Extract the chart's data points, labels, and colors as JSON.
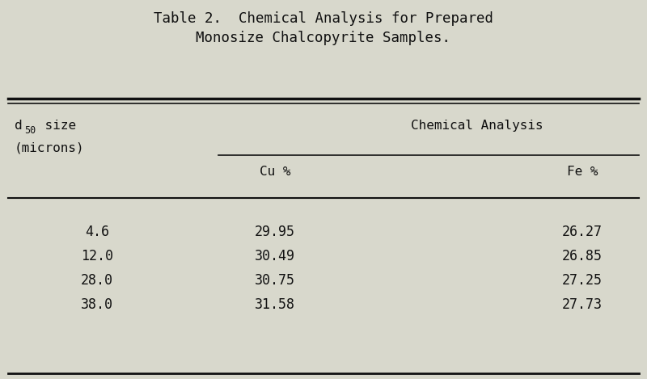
{
  "title_line1": "Table 2.  Chemical Analysis for Prepared",
  "title_line2": "Monosize Chalcopyrite Samples.",
  "col_header_group": "Chemical Analysis",
  "col_header_cu": "Cu %",
  "col_header_fe": "Fe %",
  "rows": [
    {
      "size": "4.6",
      "cu": "29.95",
      "fe": "26.27"
    },
    {
      "size": "12.0",
      "cu": "30.49",
      "fe": "26.85"
    },
    {
      "size": "28.0",
      "cu": "30.75",
      "fe": "27.25"
    },
    {
      "size": "38.0",
      "cu": "31.58",
      "fe": "27.73"
    }
  ],
  "bg_color": "#d8d8cc",
  "text_color": "#111111",
  "title_fontsize": 12.5,
  "header_fontsize": 11.5,
  "data_fontsize": 12.0,
  "sub_fontsize": 8.5
}
